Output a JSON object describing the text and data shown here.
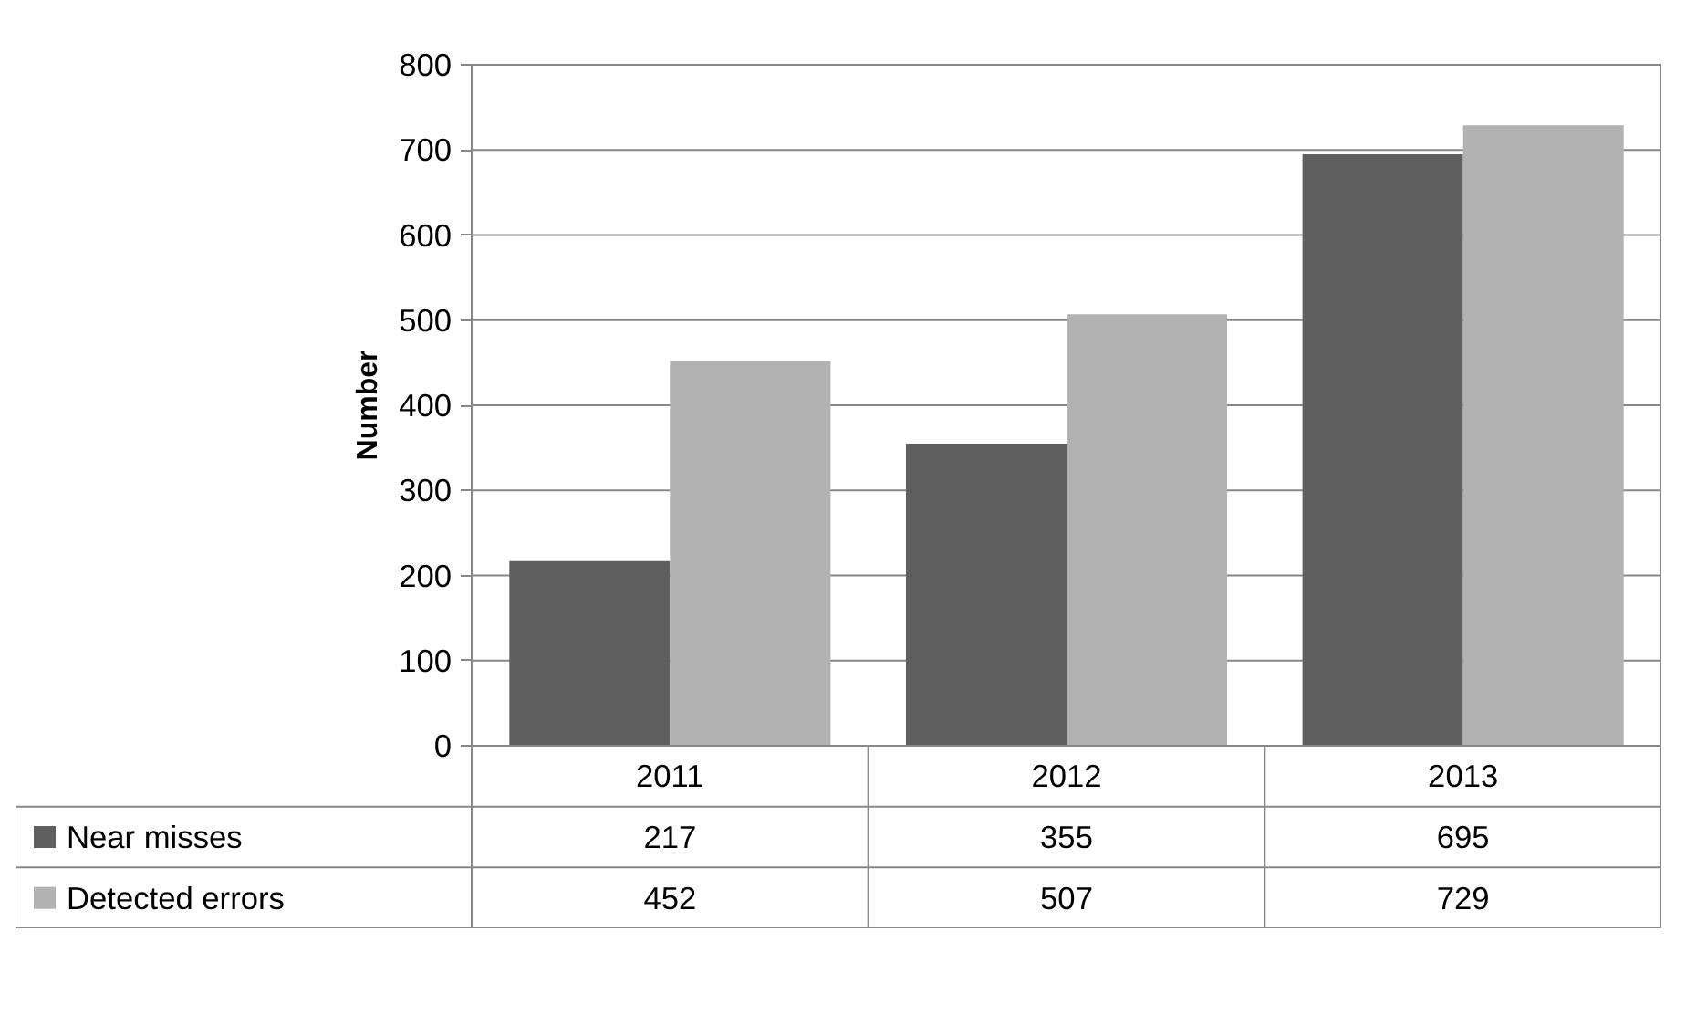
{
  "chart_data": {
    "type": "bar",
    "ylabel": "Number",
    "categories": [
      "2011",
      "2012",
      "2013"
    ],
    "series": [
      {
        "name": "Near misses",
        "color": "#5f5f5f",
        "values": [
          217,
          355,
          695
        ]
      },
      {
        "name": "Detected errors",
        "color": "#b2b2b2",
        "values": [
          452,
          507,
          729
        ]
      }
    ],
    "ylim": [
      0,
      800
    ],
    "yticks": [
      0,
      100,
      200,
      300,
      400,
      500,
      600,
      700,
      800
    ],
    "grid": "y",
    "legend": "bottom",
    "data_labels": true
  }
}
